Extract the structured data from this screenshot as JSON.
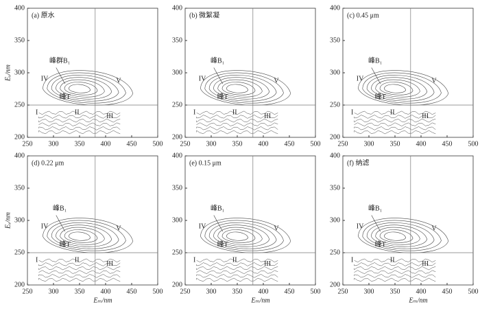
{
  "chart_data": [
    {
      "type": "contour",
      "title": "(a) 原水",
      "ylabel": "Eₓ/nm",
      "xlim": [
        250,
        500
      ],
      "ylim": [
        200,
        400
      ],
      "xticks": [
        250,
        300,
        350,
        400,
        450,
        500
      ],
      "yticks": [
        200,
        250,
        300,
        350,
        400
      ],
      "xline": 380,
      "yline": 250,
      "annotations": [
        "峰群B₁",
        "IV",
        "V",
        "峰T",
        "I",
        "II",
        "III"
      ]
    },
    {
      "type": "contour",
      "title": "(b) 微絮凝",
      "xlim": [
        250,
        500
      ],
      "ylim": [
        200,
        400
      ],
      "xticks": [
        250,
        300,
        350,
        400,
        450,
        500
      ],
      "yticks": [
        200,
        250,
        300,
        350,
        400
      ],
      "xline": 380,
      "yline": 250,
      "annotations": [
        "峰B₁",
        "IV",
        "V",
        "峰T",
        "I",
        "II",
        "III"
      ]
    },
    {
      "type": "contour",
      "title": "(c) 0.45 μm",
      "xlim": [
        250,
        500
      ],
      "ylim": [
        200,
        400
      ],
      "xticks": [
        250,
        300,
        350,
        400,
        450,
        500
      ],
      "yticks": [
        200,
        250,
        300,
        350,
        400
      ],
      "xline": 380,
      "yline": 250,
      "annotations": [
        "峰B₁",
        "IV",
        "V",
        "峰T",
        "I",
        "II",
        "III"
      ]
    },
    {
      "type": "contour",
      "title": "(d) 0.22 μm",
      "ylabel": "Eₓ/nm",
      "xlabel": "Eₘ/nm",
      "xlim": [
        250,
        500
      ],
      "ylim": [
        200,
        400
      ],
      "xticks": [
        250,
        300,
        350,
        400,
        450,
        500
      ],
      "yticks": [
        200,
        250,
        300,
        350,
        400
      ],
      "xline": 380,
      "yline": 250,
      "annotations": [
        "峰B₁",
        "IV",
        "V",
        "峰T",
        "I",
        "II",
        "III"
      ]
    },
    {
      "type": "contour",
      "title": "(e) 0.15 μm",
      "xlabel": "Eₘ/nm",
      "xlim": [
        250,
        500
      ],
      "ylim": [
        200,
        400
      ],
      "xticks": [
        250,
        300,
        350,
        400,
        450,
        500
      ],
      "yticks": [
        200,
        250,
        300,
        350,
        400
      ],
      "xline": 380,
      "yline": 250,
      "annotations": [
        "峰B₁",
        "IV",
        "V",
        "峰T",
        "I",
        "II",
        "III"
      ]
    },
    {
      "type": "contour",
      "title": "(f) 纳滤",
      "xlabel": "Eₘ/nm",
      "xlim": [
        250,
        500
      ],
      "ylim": [
        200,
        400
      ],
      "xticks": [
        250,
        300,
        350,
        400,
        450,
        500
      ],
      "yticks": [
        200,
        250,
        300,
        350,
        400
      ],
      "xline": 380,
      "yline": 250,
      "annotations": [
        "峰B₁",
        "IV",
        "V",
        "峰T",
        "I",
        "II",
        "III"
      ]
    }
  ]
}
